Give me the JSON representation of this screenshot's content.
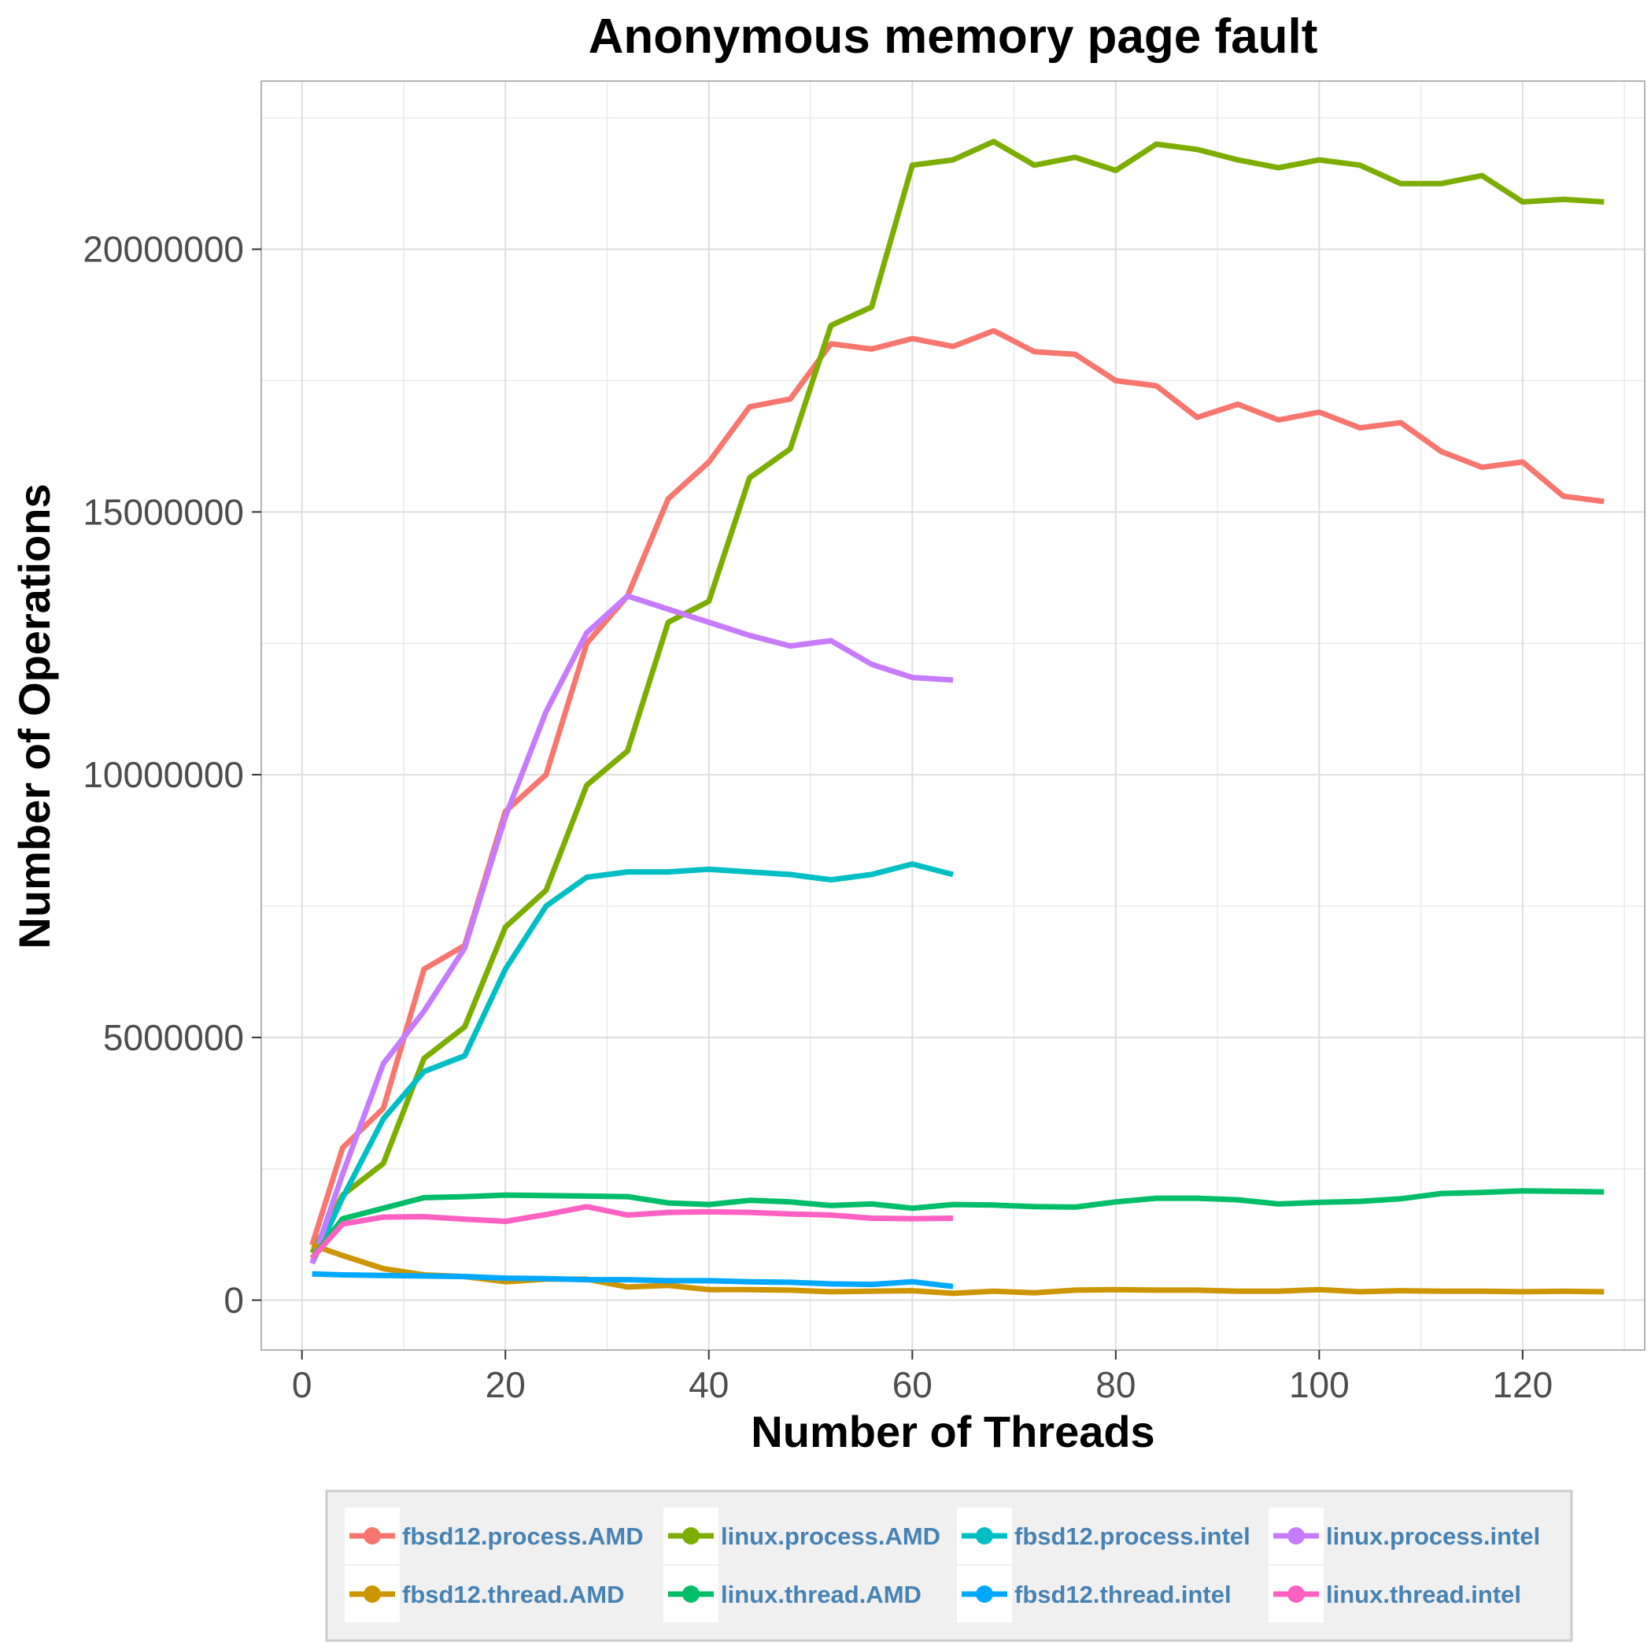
{
  "chart_data": {
    "type": "line",
    "title": "Anonymous memory page fault",
    "xlabel": "Number of Threads",
    "ylabel": "Number of Operations",
    "xlim": [
      -4,
      132
    ],
    "ylim": [
      -950000,
      23200000
    ],
    "x_ticks": [
      0,
      20,
      40,
      60,
      80,
      100,
      120
    ],
    "x_tick_labels": [
      "0",
      "20",
      "40",
      "60",
      "80",
      "100",
      "120"
    ],
    "y_ticks": [
      0,
      5000000,
      10000000,
      15000000,
      20000000
    ],
    "y_tick_labels": [
      "0",
      "5000000",
      "10000000",
      "15000000",
      "20000000"
    ],
    "grid": true,
    "legend_position": "bottom",
    "series": [
      {
        "name": "fbsd12.process.AMD",
        "color": "#F8766D",
        "x": [
          1,
          4,
          8,
          12,
          16,
          20,
          24,
          28,
          32,
          36,
          40,
          44,
          48,
          52,
          56,
          60,
          64,
          68,
          72,
          76,
          80,
          84,
          88,
          92,
          96,
          100,
          104,
          108,
          112,
          116,
          120,
          124,
          128
        ],
        "y": [
          1050000,
          2900000,
          3650000,
          6300000,
          6750000,
          9300000,
          10000000,
          12500000,
          13400000,
          15250000,
          15950000,
          17000000,
          17150000,
          18200000,
          18100000,
          18300000,
          18150000,
          18450000,
          18050000,
          18000000,
          17500000,
          17400000,
          16800000,
          17050000,
          16750000,
          16900000,
          16600000,
          16700000,
          16150000,
          15850000,
          15950000,
          15300000,
          15200000
        ]
      },
      {
        "name": "linux.process.AMD",
        "color": "#7CAE00",
        "x": [
          1,
          4,
          8,
          12,
          16,
          20,
          24,
          28,
          32,
          36,
          40,
          44,
          48,
          52,
          56,
          60,
          64,
          68,
          72,
          76,
          80,
          84,
          88,
          92,
          96,
          100,
          104,
          108,
          112,
          116,
          120,
          124,
          128
        ],
        "y": [
          900000,
          2000000,
          2600000,
          4600000,
          5200000,
          7100000,
          7800000,
          9800000,
          10450000,
          12900000,
          13300000,
          15650000,
          16200000,
          18550000,
          18900000,
          21600000,
          21700000,
          22050000,
          21600000,
          21750000,
          21500000,
          22000000,
          21900000,
          21700000,
          21550000,
          21700000,
          21600000,
          21250000,
          21250000,
          21400000,
          20900000,
          20950000,
          20900000
        ]
      },
      {
        "name": "fbsd12.process.intel",
        "color": "#00BFC4",
        "x": [
          1,
          4,
          8,
          12,
          16,
          20,
          24,
          28,
          32,
          36,
          40,
          44,
          48,
          52,
          56,
          60,
          64
        ],
        "y": [
          700000,
          1950000,
          3450000,
          4350000,
          4650000,
          6300000,
          7500000,
          8050000,
          8150000,
          8150000,
          8200000,
          8150000,
          8100000,
          8000000,
          8100000,
          8300000,
          8100000
        ]
      },
      {
        "name": "linux.process.intel",
        "color": "#C77CFF",
        "x": [
          1,
          4,
          8,
          12,
          16,
          20,
          24,
          28,
          32,
          36,
          40,
          44,
          48,
          52,
          56,
          60,
          64
        ],
        "y": [
          700000,
          2400000,
          4500000,
          5500000,
          6700000,
          9200000,
          11200000,
          12700000,
          13400000,
          13150000,
          12900000,
          12650000,
          12450000,
          12550000,
          12100000,
          11850000,
          11800000
        ]
      },
      {
        "name": "fbsd12.thread.AMD",
        "color": "#CD9600",
        "x": [
          1,
          4,
          8,
          12,
          16,
          20,
          24,
          28,
          32,
          36,
          40,
          44,
          48,
          52,
          56,
          60,
          64,
          68,
          72,
          76,
          80,
          84,
          88,
          92,
          96,
          100,
          104,
          108,
          112,
          116,
          120,
          124,
          128
        ],
        "y": [
          1050000,
          850000,
          600000,
          480000,
          450000,
          350000,
          400000,
          400000,
          250000,
          280000,
          200000,
          200000,
          190000,
          160000,
          170000,
          180000,
          130000,
          170000,
          140000,
          190000,
          200000,
          190000,
          190000,
          170000,
          170000,
          200000,
          160000,
          180000,
          170000,
          170000,
          160000,
          170000,
          160000
        ]
      },
      {
        "name": "linux.thread.AMD",
        "color": "#00BE67",
        "x": [
          1,
          4,
          8,
          12,
          16,
          20,
          24,
          28,
          32,
          36,
          40,
          44,
          48,
          52,
          56,
          60,
          64,
          68,
          72,
          76,
          80,
          84,
          88,
          92,
          96,
          100,
          104,
          108,
          112,
          116,
          120,
          124,
          128
        ],
        "y": [
          800000,
          1550000,
          1750000,
          1950000,
          1970000,
          2000000,
          1990000,
          1980000,
          1970000,
          1850000,
          1820000,
          1900000,
          1870000,
          1800000,
          1830000,
          1750000,
          1820000,
          1810000,
          1780000,
          1770000,
          1870000,
          1940000,
          1940000,
          1910000,
          1830000,
          1860000,
          1880000,
          1930000,
          2030000,
          2050000,
          2080000,
          2070000,
          2060000
        ]
      },
      {
        "name": "fbsd12.thread.intel",
        "color": "#00A9FF",
        "x": [
          1,
          4,
          8,
          12,
          16,
          20,
          24,
          28,
          32,
          36,
          40,
          44,
          48,
          52,
          56,
          60,
          64
        ],
        "y": [
          500000,
          480000,
          470000,
          460000,
          450000,
          420000,
          410000,
          390000,
          390000,
          370000,
          370000,
          350000,
          340000,
          310000,
          300000,
          350000,
          260000
        ]
      },
      {
        "name": "linux.thread.intel",
        "color": "#FF61C3",
        "x": [
          1,
          4,
          8,
          12,
          16,
          20,
          24,
          28,
          32,
          36,
          40,
          44,
          48,
          52,
          56,
          60,
          64
        ],
        "y": [
          800000,
          1450000,
          1580000,
          1590000,
          1540000,
          1500000,
          1630000,
          1780000,
          1620000,
          1670000,
          1680000,
          1670000,
          1640000,
          1620000,
          1560000,
          1550000,
          1560000
        ]
      }
    ]
  }
}
